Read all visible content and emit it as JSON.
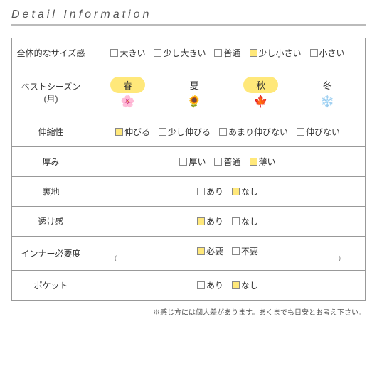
{
  "heading": "Detail Information",
  "colors": {
    "highlight": "#ffe87a",
    "border": "#999999",
    "text": "#333333"
  },
  "rows": [
    {
      "label": "全体的なサイズ感",
      "type": "checks",
      "options": [
        {
          "label": "大きい",
          "selected": false
        },
        {
          "label": "少し大きい",
          "selected": false
        },
        {
          "label": "普通",
          "selected": false
        },
        {
          "label": "少し小さい",
          "selected": true
        },
        {
          "label": "小さい",
          "selected": false
        }
      ]
    },
    {
      "label": "ベストシーズン(月)",
      "type": "seasons",
      "seasons": [
        {
          "label": "春",
          "highlighted": true,
          "icon": "🌸",
          "icon_name": "sakura-icon"
        },
        {
          "label": "夏",
          "highlighted": false,
          "icon": "🌻",
          "icon_name": "sunflower-icon"
        },
        {
          "label": "秋",
          "highlighted": true,
          "icon": "🍁",
          "icon_name": "maple-icon"
        },
        {
          "label": "冬",
          "highlighted": false,
          "icon": "❄️",
          "icon_name": "snowflake-icon"
        }
      ]
    },
    {
      "label": "伸縮性",
      "type": "checks",
      "options": [
        {
          "label": "伸びる",
          "selected": true
        },
        {
          "label": "少し伸びる",
          "selected": false
        },
        {
          "label": "あまり伸びない",
          "selected": false
        },
        {
          "label": "伸びない",
          "selected": false
        }
      ]
    },
    {
      "label": "厚み",
      "type": "checks",
      "options": [
        {
          "label": "厚い",
          "selected": false
        },
        {
          "label": "普通",
          "selected": false
        },
        {
          "label": "薄い",
          "selected": true
        }
      ]
    },
    {
      "label": "裏地",
      "type": "checks",
      "options": [
        {
          "label": "あり",
          "selected": false
        },
        {
          "label": "なし",
          "selected": true
        }
      ]
    },
    {
      "label": "透け感",
      "type": "checks",
      "options": [
        {
          "label": "あり",
          "selected": true
        },
        {
          "label": "なし",
          "selected": false
        }
      ]
    },
    {
      "label": "インナー必要度",
      "type": "checks",
      "options": [
        {
          "label": "必要",
          "selected": true
        },
        {
          "label": "不要",
          "selected": false
        }
      ],
      "subnote_left": "(",
      "subnote_right": ")"
    },
    {
      "label": "ポケット",
      "type": "checks",
      "options": [
        {
          "label": "あり",
          "selected": false
        },
        {
          "label": "なし",
          "selected": true
        }
      ]
    }
  ],
  "footnote": "※感じ方には個人差があります。あくまでも目安とお考え下さい。"
}
